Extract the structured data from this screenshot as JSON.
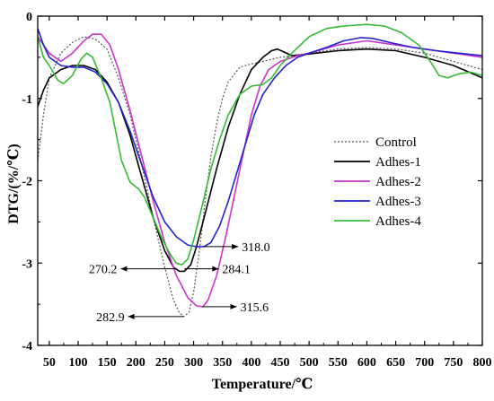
{
  "chart_data": {
    "type": "line",
    "xlabel": "Temperature/℃",
    "ylabel": "DTG/(%/℃)",
    "xlim": [
      30,
      800
    ],
    "ylim": [
      -4,
      0
    ],
    "x_ticks": [
      50,
      100,
      150,
      200,
      250,
      300,
      350,
      400,
      450,
      500,
      550,
      600,
      650,
      700,
      750,
      800
    ],
    "y_ticks": [
      0,
      -1,
      -2,
      -3,
      -4
    ],
    "x_tick_labels": [
      "50",
      "100",
      "150",
      "200",
      "250",
      "300",
      "350",
      "400",
      "450",
      "500",
      "550",
      "600",
      "650",
      "700",
      "750",
      "800"
    ],
    "y_tick_labels": [
      "0",
      "-1",
      "-2",
      "-3",
      "-4"
    ],
    "grid": false,
    "legend_position": "right",
    "series": [
      {
        "name": "Control",
        "color": "#555555",
        "dash": "2,2",
        "points": [
          [
            30,
            -1.75
          ],
          [
            40,
            -1.2
          ],
          [
            50,
            -0.75
          ],
          [
            70,
            -0.45
          ],
          [
            90,
            -0.32
          ],
          [
            110,
            -0.25
          ],
          [
            130,
            -0.28
          ],
          [
            150,
            -0.4
          ],
          [
            170,
            -0.75
          ],
          [
            190,
            -1.2
          ],
          [
            210,
            -1.8
          ],
          [
            230,
            -2.45
          ],
          [
            250,
            -3.05
          ],
          [
            265,
            -3.45
          ],
          [
            275,
            -3.6
          ],
          [
            283,
            -3.65
          ],
          [
            292,
            -3.6
          ],
          [
            300,
            -3.35
          ],
          [
            310,
            -2.85
          ],
          [
            320,
            -2.25
          ],
          [
            330,
            -1.7
          ],
          [
            340,
            -1.3
          ],
          [
            350,
            -1.0
          ],
          [
            360,
            -0.8
          ],
          [
            380,
            -0.62
          ],
          [
            400,
            -0.58
          ],
          [
            420,
            -0.55
          ],
          [
            450,
            -0.5
          ],
          [
            500,
            -0.45
          ],
          [
            550,
            -0.4
          ],
          [
            600,
            -0.38
          ],
          [
            650,
            -0.4
          ],
          [
            700,
            -0.45
          ],
          [
            750,
            -0.55
          ],
          [
            800,
            -0.65
          ]
        ]
      },
      {
        "name": "Adhes-1",
        "color": "#000000",
        "dash": "",
        "points": [
          [
            30,
            -1.1
          ],
          [
            40,
            -0.9
          ],
          [
            50,
            -0.75
          ],
          [
            70,
            -0.65
          ],
          [
            90,
            -0.6
          ],
          [
            110,
            -0.6
          ],
          [
            130,
            -0.65
          ],
          [
            150,
            -0.8
          ],
          [
            170,
            -1.05
          ],
          [
            190,
            -1.45
          ],
          [
            210,
            -1.95
          ],
          [
            230,
            -2.45
          ],
          [
            250,
            -2.85
          ],
          [
            265,
            -3.05
          ],
          [
            275,
            -3.1
          ],
          [
            284,
            -3.1
          ],
          [
            295,
            -3.02
          ],
          [
            305,
            -2.8
          ],
          [
            320,
            -2.4
          ],
          [
            340,
            -1.85
          ],
          [
            360,
            -1.35
          ],
          [
            380,
            -0.95
          ],
          [
            400,
            -0.65
          ],
          [
            420,
            -0.5
          ],
          [
            435,
            -0.42
          ],
          [
            445,
            -0.4
          ],
          [
            455,
            -0.43
          ],
          [
            470,
            -0.48
          ],
          [
            500,
            -0.46
          ],
          [
            550,
            -0.42
          ],
          [
            600,
            -0.4
          ],
          [
            650,
            -0.42
          ],
          [
            700,
            -0.5
          ],
          [
            750,
            -0.6
          ],
          [
            800,
            -0.75
          ]
        ]
      },
      {
        "name": "Adhes-2",
        "color": "#cc33cc",
        "dash": "",
        "points": [
          [
            30,
            -0.25
          ],
          [
            40,
            -0.35
          ],
          [
            50,
            -0.45
          ],
          [
            70,
            -0.55
          ],
          [
            90,
            -0.45
          ],
          [
            110,
            -0.3
          ],
          [
            125,
            -0.22
          ],
          [
            140,
            -0.22
          ],
          [
            155,
            -0.35
          ],
          [
            170,
            -0.65
          ],
          [
            190,
            -1.15
          ],
          [
            210,
            -1.7
          ],
          [
            230,
            -2.25
          ],
          [
            250,
            -2.75
          ],
          [
            270,
            -3.15
          ],
          [
            290,
            -3.42
          ],
          [
            305,
            -3.52
          ],
          [
            316,
            -3.53
          ],
          [
            325,
            -3.45
          ],
          [
            340,
            -3.15
          ],
          [
            355,
            -2.7
          ],
          [
            370,
            -2.2
          ],
          [
            385,
            -1.7
          ],
          [
            400,
            -1.2
          ],
          [
            415,
            -0.85
          ],
          [
            430,
            -0.65
          ],
          [
            450,
            -0.55
          ],
          [
            480,
            -0.48
          ],
          [
            500,
            -0.45
          ],
          [
            550,
            -0.35
          ],
          [
            600,
            -0.3
          ],
          [
            650,
            -0.35
          ],
          [
            700,
            -0.4
          ],
          [
            750,
            -0.45
          ],
          [
            800,
            -0.5
          ]
        ]
      },
      {
        "name": "Adhes-3",
        "color": "#2222cc",
        "dash": "",
        "points": [
          [
            30,
            -0.15
          ],
          [
            40,
            -0.35
          ],
          [
            50,
            -0.5
          ],
          [
            70,
            -0.6
          ],
          [
            90,
            -0.62
          ],
          [
            110,
            -0.62
          ],
          [
            130,
            -0.68
          ],
          [
            150,
            -0.82
          ],
          [
            170,
            -1.05
          ],
          [
            190,
            -1.4
          ],
          [
            210,
            -1.8
          ],
          [
            230,
            -2.2
          ],
          [
            250,
            -2.5
          ],
          [
            270,
            -2.68
          ],
          [
            290,
            -2.78
          ],
          [
            305,
            -2.8
          ],
          [
            318,
            -2.8
          ],
          [
            330,
            -2.75
          ],
          [
            345,
            -2.55
          ],
          [
            360,
            -2.25
          ],
          [
            375,
            -1.9
          ],
          [
            390,
            -1.55
          ],
          [
            405,
            -1.2
          ],
          [
            420,
            -0.95
          ],
          [
            440,
            -0.75
          ],
          [
            460,
            -0.6
          ],
          [
            480,
            -0.5
          ],
          [
            500,
            -0.45
          ],
          [
            530,
            -0.38
          ],
          [
            560,
            -0.3
          ],
          [
            590,
            -0.26
          ],
          [
            610,
            -0.27
          ],
          [
            640,
            -0.32
          ],
          [
            680,
            -0.38
          ],
          [
            720,
            -0.42
          ],
          [
            760,
            -0.45
          ],
          [
            800,
            -0.48
          ]
        ]
      },
      {
        "name": "Adhes-4",
        "color": "#33bb33",
        "dash": "",
        "points": [
          [
            30,
            -0.25
          ],
          [
            40,
            -0.5
          ],
          [
            50,
            -0.6
          ],
          [
            65,
            -0.78
          ],
          [
            75,
            -0.82
          ],
          [
            90,
            -0.72
          ],
          [
            105,
            -0.52
          ],
          [
            115,
            -0.45
          ],
          [
            125,
            -0.5
          ],
          [
            140,
            -0.75
          ],
          [
            155,
            -1.05
          ],
          [
            165,
            -1.4
          ],
          [
            175,
            -1.75
          ],
          [
            190,
            -2.02
          ],
          [
            205,
            -2.1
          ],
          [
            215,
            -2.2
          ],
          [
            230,
            -2.45
          ],
          [
            245,
            -2.7
          ],
          [
            260,
            -2.9
          ],
          [
            270,
            -3.0
          ],
          [
            280,
            -3.02
          ],
          [
            290,
            -2.95
          ],
          [
            300,
            -2.72
          ],
          [
            315,
            -2.3
          ],
          [
            330,
            -1.85
          ],
          [
            345,
            -1.5
          ],
          [
            360,
            -1.2
          ],
          [
            380,
            -0.95
          ],
          [
            400,
            -0.85
          ],
          [
            420,
            -0.83
          ],
          [
            435,
            -0.75
          ],
          [
            450,
            -0.6
          ],
          [
            470,
            -0.45
          ],
          [
            500,
            -0.25
          ],
          [
            530,
            -0.15
          ],
          [
            560,
            -0.12
          ],
          [
            600,
            -0.1
          ],
          [
            630,
            -0.12
          ],
          [
            660,
            -0.2
          ],
          [
            690,
            -0.35
          ],
          [
            710,
            -0.55
          ],
          [
            725,
            -0.72
          ],
          [
            740,
            -0.75
          ],
          [
            760,
            -0.7
          ],
          [
            780,
            -0.68
          ],
          [
            800,
            -0.72
          ]
        ]
      }
    ],
    "annotations": [
      {
        "text": "318.0",
        "x": 318,
        "y": -2.8,
        "direction": "right"
      },
      {
        "text": "270.2",
        "x": 270.2,
        "y": -3.07,
        "direction": "left"
      },
      {
        "text": "284.1",
        "x": 284.1,
        "y": -3.07,
        "direction": "right"
      },
      {
        "text": "282.9",
        "x": 282.9,
        "y": -3.65,
        "direction": "left"
      },
      {
        "text": "315.6",
        "x": 315.6,
        "y": -3.53,
        "direction": "right"
      }
    ]
  }
}
